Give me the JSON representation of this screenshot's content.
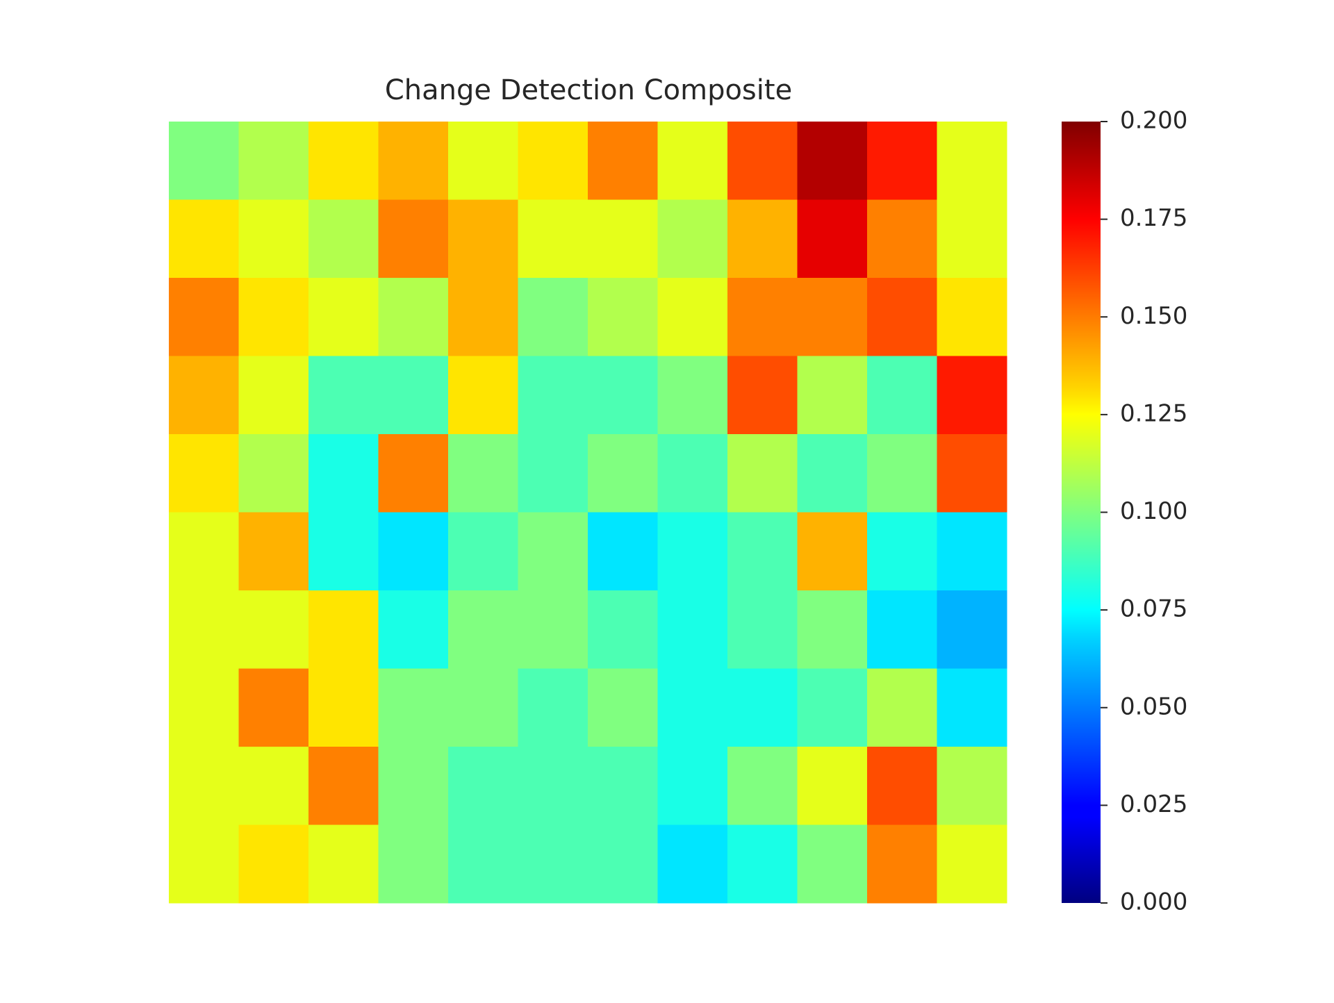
{
  "chart_data": {
    "type": "heatmap",
    "title": "Change Detection Composite",
    "colormap": "jet",
    "clim": [
      0,
      0.2
    ],
    "colorbar_ticks": [
      {
        "value": 0,
        "label": "0.000"
      },
      {
        "value": 0.025,
        "label": "0.025"
      },
      {
        "value": 0.05,
        "label": "0.050"
      },
      {
        "value": 0.075,
        "label": "0.075"
      },
      {
        "value": 0.1,
        "label": "0.100"
      },
      {
        "value": 0.125,
        "label": "0.125"
      },
      {
        "value": 0.15,
        "label": "0.150"
      },
      {
        "value": 0.175,
        "label": "0.175"
      },
      {
        "value": 0.2,
        "label": "0.200"
      }
    ],
    "z": [
      [
        0.1,
        0.11,
        0.13,
        0.14,
        0.12,
        0.13,
        0.15,
        0.12,
        0.16,
        0.19,
        0.17,
        0.12
      ],
      [
        0.13,
        0.12,
        0.11,
        0.15,
        0.14,
        0.12,
        0.12,
        0.11,
        0.14,
        0.18,
        0.15,
        0.12
      ],
      [
        0.15,
        0.13,
        0.12,
        0.11,
        0.14,
        0.1,
        0.11,
        0.12,
        0.15,
        0.15,
        0.16,
        0.13
      ],
      [
        0.14,
        0.12,
        0.09,
        0.09,
        0.13,
        0.09,
        0.09,
        0.1,
        0.16,
        0.11,
        0.09,
        0.17
      ],
      [
        0.13,
        0.11,
        0.08,
        0.15,
        0.1,
        0.09,
        0.1,
        0.09,
        0.11,
        0.09,
        0.1,
        0.16
      ],
      [
        0.12,
        0.14,
        0.08,
        0.07,
        0.09,
        0.1,
        0.07,
        0.08,
        0.09,
        0.14,
        0.08,
        0.07
      ],
      [
        0.12,
        0.12,
        0.13,
        0.08,
        0.1,
        0.1,
        0.09,
        0.08,
        0.09,
        0.1,
        0.07,
        0.06
      ],
      [
        0.12,
        0.15,
        0.13,
        0.1,
        0.1,
        0.09,
        0.1,
        0.08,
        0.08,
        0.09,
        0.11,
        0.07
      ],
      [
        0.12,
        0.12,
        0.15,
        0.1,
        0.09,
        0.09,
        0.09,
        0.08,
        0.1,
        0.12,
        0.16,
        0.11
      ],
      [
        0.12,
        0.13,
        0.12,
        0.1,
        0.09,
        0.09,
        0.09,
        0.07,
        0.08,
        0.1,
        0.15,
        0.12
      ]
    ]
  }
}
